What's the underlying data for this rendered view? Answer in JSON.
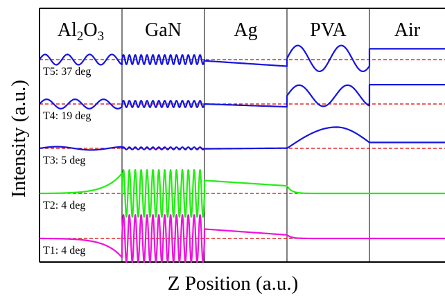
{
  "chart_data": {
    "type": "line",
    "title": "",
    "xlabel": "Z Position (a.u.)",
    "ylabel": "Intensity (a.u.)",
    "grid": false,
    "legend": "none",
    "regions": [
      {
        "name": "Al",
        "sub": "2",
        "name2": "O",
        "sub2": "3",
        "from": 0,
        "to": 1
      },
      {
        "name": "GaN",
        "from": 1,
        "to": 2
      },
      {
        "name": "Ag",
        "from": 2,
        "to": 3
      },
      {
        "name": "PVA",
        "from": 3,
        "to": 4
      },
      {
        "name": "Air",
        "from": 4,
        "to": 4.9
      }
    ],
    "series": [
      {
        "name": "T5: 37 deg",
        "color": "#1414e0",
        "baseline": 4,
        "segments": [
          {
            "region": 0,
            "shape": "osc",
            "amp": 0.22,
            "cycles": 3.7,
            "offset": 0
          },
          {
            "region": 1,
            "shape": "osc",
            "amp": 0.2,
            "cycles": 14,
            "offset": 0
          },
          {
            "region": 2,
            "shape": "linear",
            "start": -0.05,
            "end": -0.28
          },
          {
            "region": 3,
            "shape": "osc",
            "amp": 0.55,
            "cycles": 1.9,
            "offset": 0.05
          },
          {
            "region": 4,
            "shape": "flat",
            "value": 0.46
          }
        ]
      },
      {
        "name": "T4: 19 deg",
        "color": "#1414e0",
        "baseline": 3,
        "segments": [
          {
            "region": 0,
            "shape": "osc",
            "amp": 0.2,
            "cycles": 2.9,
            "offset": 0
          },
          {
            "region": 1,
            "shape": "osc",
            "amp": 0.14,
            "cycles": 14,
            "offset": 0
          },
          {
            "region": 2,
            "shape": "linear",
            "start": 0.0,
            "end": -0.12
          },
          {
            "region": 3,
            "shape": "osc",
            "amp": 0.45,
            "cycles": 1.7,
            "offset": 0.35
          },
          {
            "region": 4,
            "shape": "flat",
            "value": 0.82
          }
        ]
      },
      {
        "name": "T3: 5 deg",
        "color": "#1414e0",
        "baseline": 2,
        "segments": [
          {
            "region": 0,
            "shape": "osc",
            "amp": 0.07,
            "cycles": 1.2,
            "offset": 0
          },
          {
            "region": 1,
            "shape": "osc",
            "amp": 0.05,
            "cycles": 14,
            "offset": 0
          },
          {
            "region": 2,
            "shape": "linear",
            "start": -0.02,
            "end": 0.01
          },
          {
            "region": 3,
            "shape": "arch",
            "start": 0.0,
            "peak": 0.9,
            "end": 0.25
          },
          {
            "region": 4,
            "shape": "flat",
            "value": 0.25
          }
        ]
      },
      {
        "name": "T2: 4 deg",
        "color": "#22ee11",
        "baseline": 1,
        "segments": [
          {
            "region": 0,
            "shape": "exp",
            "value": 0.85,
            "k": 4
          },
          {
            "region": 1,
            "shape": "osc",
            "amp": 1.0,
            "cycles": 14,
            "offset": 0
          },
          {
            "region": 2,
            "shape": "linear",
            "start": 0.55,
            "end": 0.32
          },
          {
            "region": 3,
            "shape": "decay",
            "value": 0.32,
            "k": 18
          },
          {
            "region": 4,
            "shape": "flat",
            "value": 0.0
          }
        ]
      },
      {
        "name": "T1: 4 deg",
        "color": "#ee11dd",
        "baseline": 0,
        "segments": [
          {
            "region": 0,
            "shape": "exp",
            "value": -0.8,
            "k": 4
          },
          {
            "region": 1,
            "shape": "osc",
            "amp": 1.0,
            "cycles": 14,
            "offset": 0
          },
          {
            "region": 2,
            "shape": "linear",
            "start": 0.4,
            "end": 0.15
          },
          {
            "region": 3,
            "shape": "decay",
            "value": 0.15,
            "k": 18
          },
          {
            "region": 4,
            "shape": "flat",
            "value": 0.0
          }
        ]
      }
    ],
    "baseline_color": "#dd0000"
  }
}
